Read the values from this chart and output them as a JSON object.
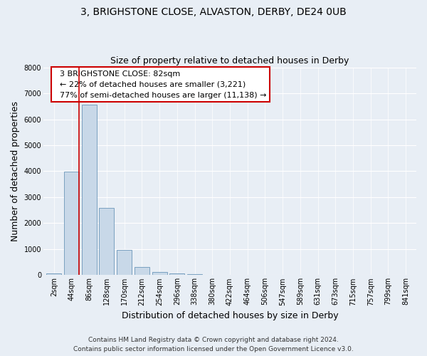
{
  "title1": "3, BRIGHSTONE CLOSE, ALVASTON, DERBY, DE24 0UB",
  "title2": "Size of property relative to detached houses in Derby",
  "xlabel": "Distribution of detached houses by size in Derby",
  "ylabel": "Number of detached properties",
  "bar_labels": [
    "2sqm",
    "44sqm",
    "86sqm",
    "128sqm",
    "170sqm",
    "212sqm",
    "254sqm",
    "296sqm",
    "338sqm",
    "380sqm",
    "422sqm",
    "464sqm",
    "506sqm",
    "547sqm",
    "589sqm",
    "631sqm",
    "673sqm",
    "715sqm",
    "757sqm",
    "799sqm",
    "841sqm"
  ],
  "bar_values": [
    75,
    3980,
    6550,
    2600,
    960,
    320,
    130,
    70,
    50,
    0,
    0,
    0,
    0,
    0,
    0,
    0,
    0,
    0,
    0,
    0,
    0
  ],
  "bar_color": "#c8d8e8",
  "bar_edge_color": "#7aa0c0",
  "ylim": [
    0,
    8000
  ],
  "yticks": [
    0,
    1000,
    2000,
    3000,
    4000,
    5000,
    6000,
    7000,
    8000
  ],
  "property_line_color": "#cc0000",
  "annotation_title": "3 BRIGHSTONE CLOSE: 82sqm",
  "annotation_line1": "← 22% of detached houses are smaller (3,221)",
  "annotation_line2": "77% of semi-detached houses are larger (11,138) →",
  "annotation_box_color": "#ffffff",
  "annotation_box_edge": "#cc0000",
  "footer1": "Contains HM Land Registry data © Crown copyright and database right 2024.",
  "footer2": "Contains public sector information licensed under the Open Government Licence v3.0.",
  "bg_color": "#e8eef5",
  "plot_bg_color": "#e8eef5",
  "grid_color": "#ffffff",
  "title1_fontsize": 10,
  "title2_fontsize": 9,
  "axis_label_fontsize": 9,
  "tick_fontsize": 7,
  "annotation_fontsize": 8,
  "footer_fontsize": 6.5
}
